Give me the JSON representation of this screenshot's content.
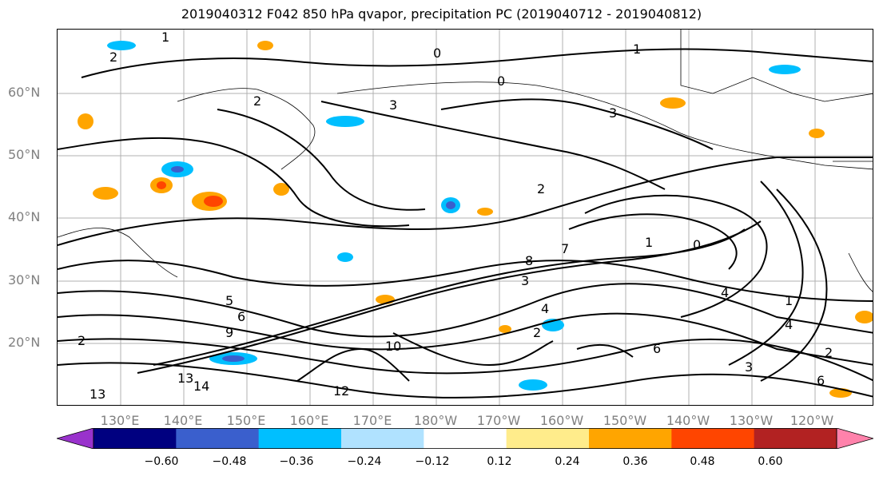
{
  "title": "2019040312 F042 850 hPa qvapor, precipitation PC (2019040712 - 2019040812)",
  "lat_labels": [
    "60°N",
    "50°N",
    "40°N",
    "30°N",
    "20°N"
  ],
  "lon_labels": [
    "130°E",
    "140°E",
    "150°E",
    "160°E",
    "170°E",
    "180°W",
    "170°W",
    "160°W",
    "150°W",
    "140°W",
    "130°W",
    "120°W"
  ],
  "colorbar": {
    "colors": [
      "#9932CC",
      "#000080",
      "#3A5FCD",
      "#00BFFF",
      "#B0E2FF",
      "#FFFFFF",
      "#FFEC8B",
      "#FFA500",
      "#FF4500",
      "#B22222",
      "#FF82AB"
    ],
    "ticks": [
      "−0.60",
      "−0.48",
      "−0.36",
      "−0.24",
      "−0.12",
      "0.12",
      "0.24",
      "0.36",
      "0.48",
      "0.60"
    ]
  },
  "contour_labels": [
    {
      "text": "1"
    },
    {
      "text": "2"
    },
    {
      "text": "0"
    },
    {
      "text": "1"
    },
    {
      "text": "3"
    },
    {
      "text": "0"
    },
    {
      "text": "3"
    },
    {
      "text": "2"
    },
    {
      "text": "2"
    },
    {
      "text": "1"
    },
    {
      "text": "0"
    },
    {
      "text": "8"
    },
    {
      "text": "7"
    },
    {
      "text": "6"
    },
    {
      "text": "5"
    },
    {
      "text": "3"
    },
    {
      "text": "4"
    },
    {
      "text": "2"
    },
    {
      "text": "6"
    },
    {
      "text": "9"
    },
    {
      "text": "10"
    },
    {
      "text": "13"
    },
    {
      "text": "14"
    },
    {
      "text": "12"
    },
    {
      "text": "13"
    },
    {
      "text": "6"
    },
    {
      "text": "3"
    },
    {
      "text": "4"
    },
    {
      "text": "2"
    },
    {
      "text": "4"
    },
    {
      "text": "2"
    },
    {
      "text": "1"
    }
  ]
}
